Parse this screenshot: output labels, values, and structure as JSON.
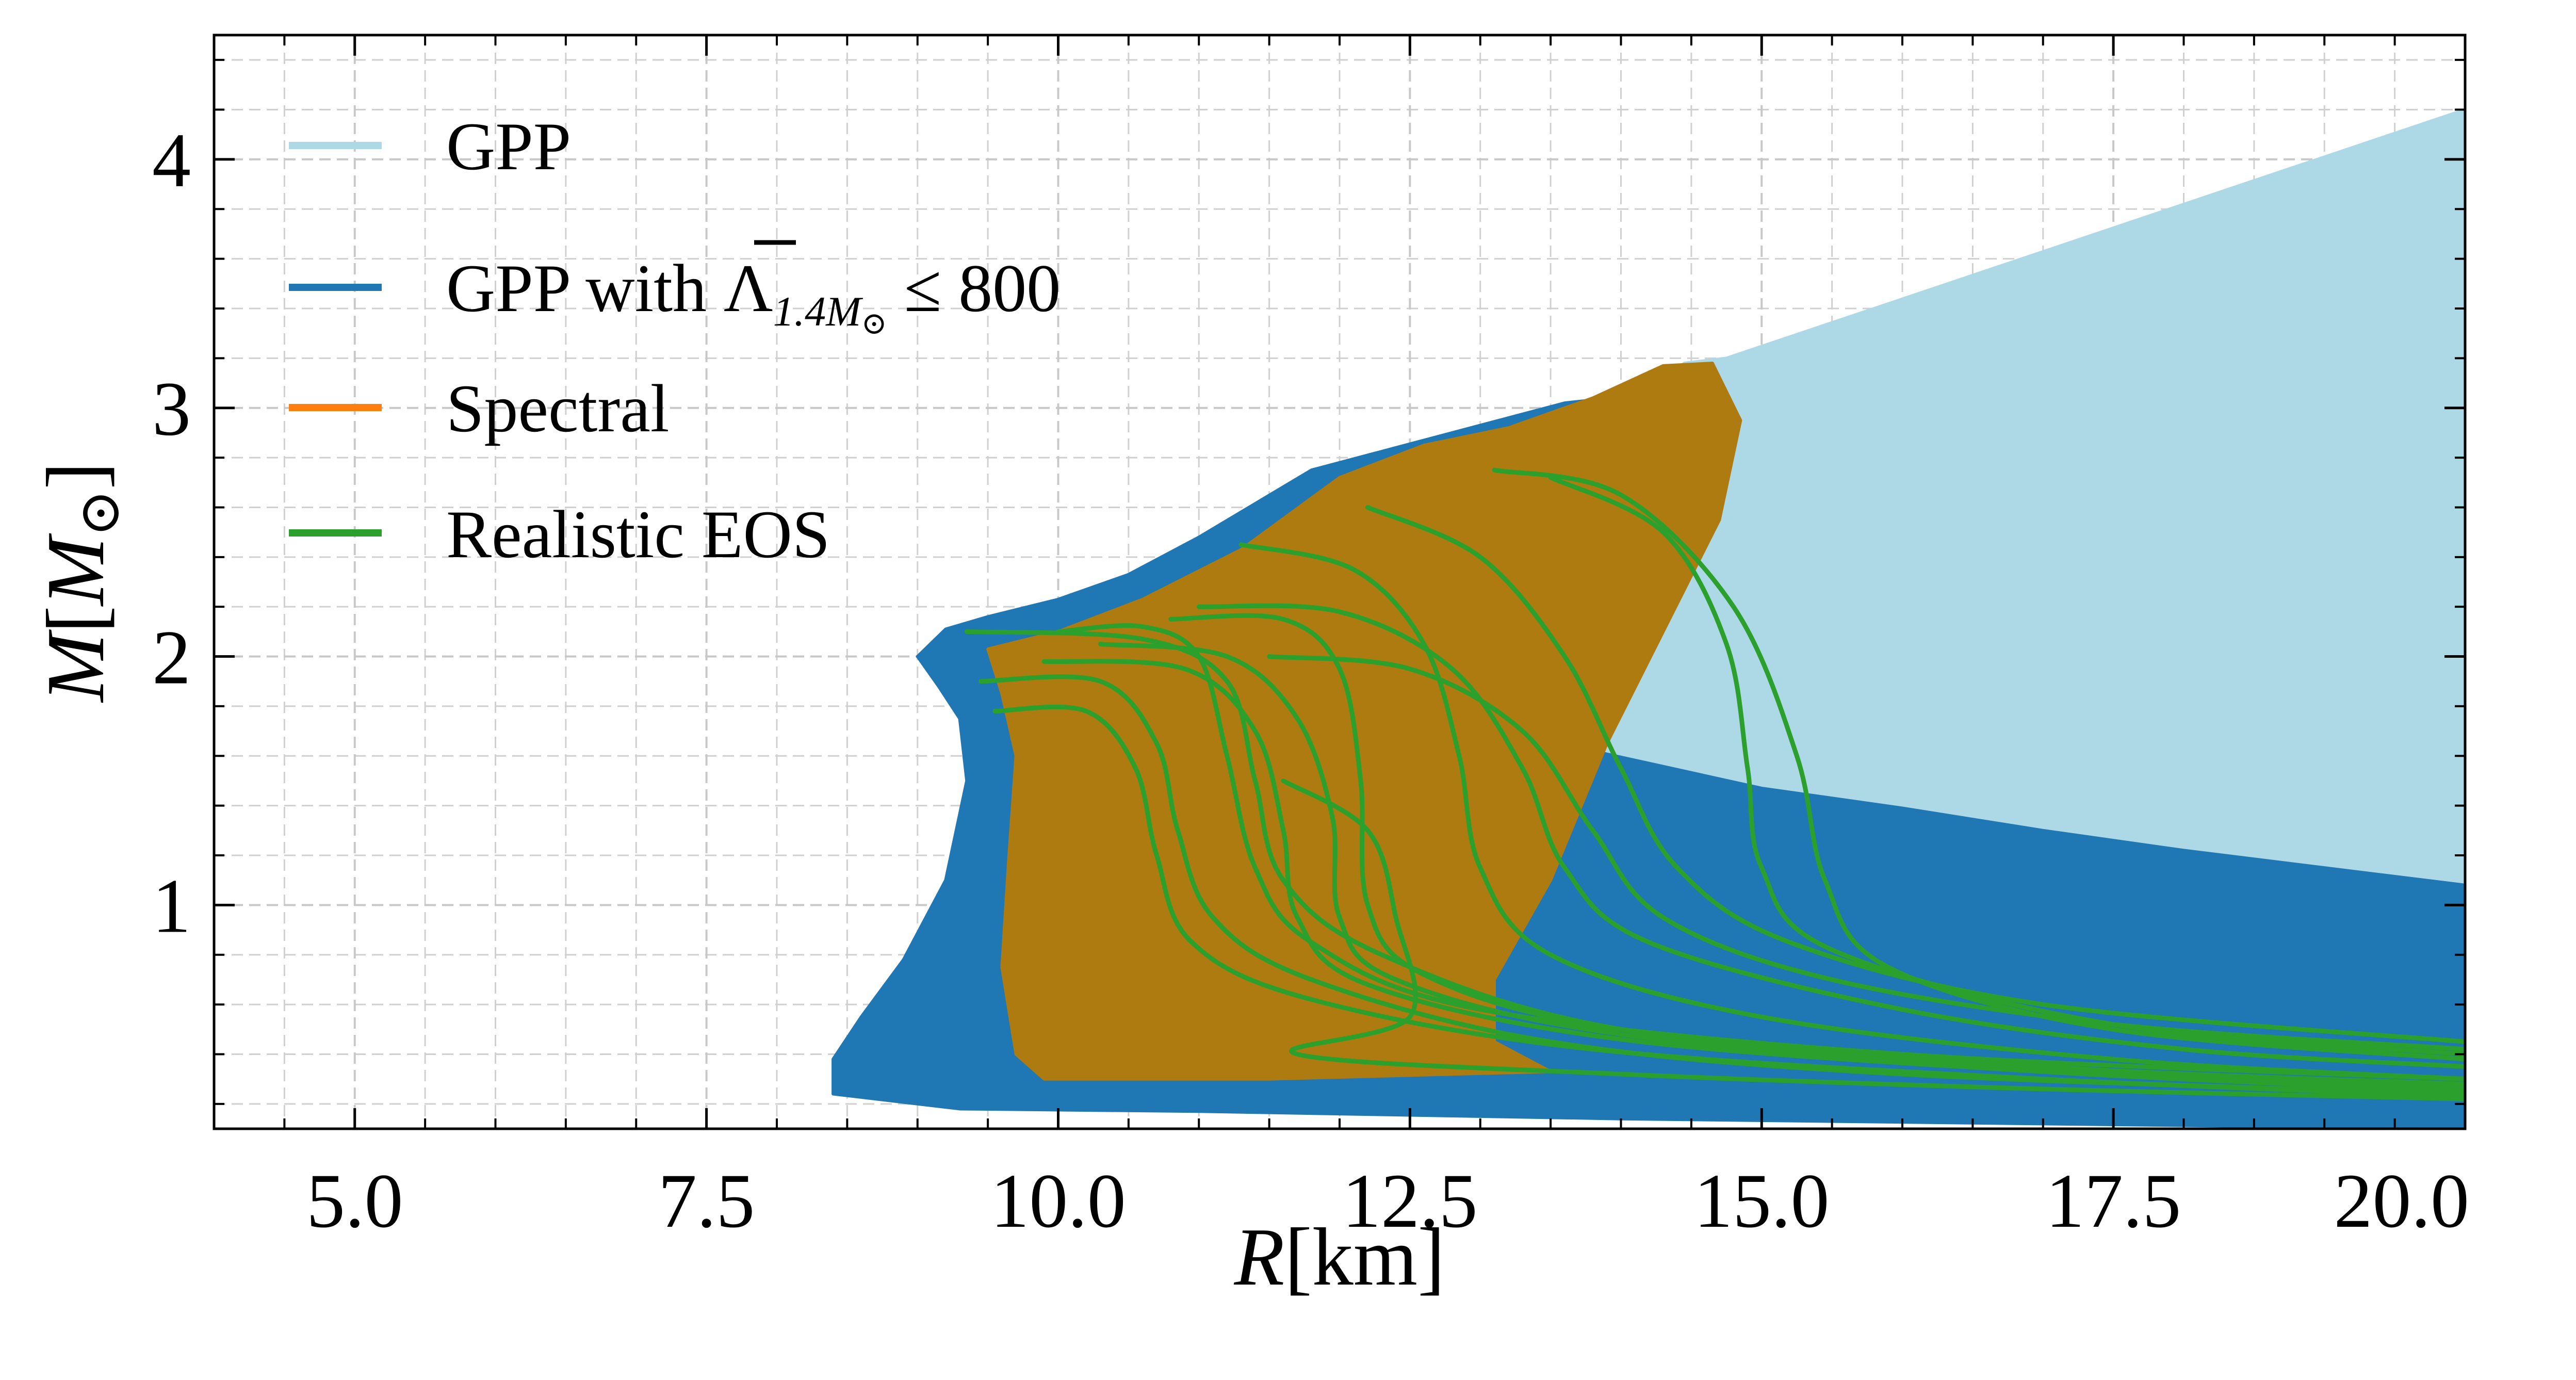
{
  "chart_data": {
    "type": "area",
    "title": "",
    "xlabel": {
      "var": "R",
      "unit": "[km]"
    },
    "ylabel": {
      "var": "M",
      "bracket_open": "[",
      "bracket_close": "]",
      "subscript": "M",
      "sun": "⊙"
    },
    "xlim": [
      4.0,
      20.0
    ],
    "ylim": [
      0.1,
      4.5
    ],
    "grid": true,
    "x_ticks": [
      {
        "value": 5.0,
        "label": "5.0"
      },
      {
        "value": 7.5,
        "label": "7.5"
      },
      {
        "value": 10.0,
        "label": "10.0"
      },
      {
        "value": 12.5,
        "label": "12.5"
      },
      {
        "value": 15.0,
        "label": "15.0"
      },
      {
        "value": 17.5,
        "label": "17.5"
      },
      {
        "value": 20.0,
        "label": "20.0"
      }
    ],
    "y_ticks": [
      {
        "value": 1,
        "label": "1"
      },
      {
        "value": 2,
        "label": "2"
      },
      {
        "value": 3,
        "label": "3"
      },
      {
        "value": 4,
        "label": "4"
      }
    ],
    "legend_position": "top-left",
    "legend": [
      {
        "label": "GPP",
        "color": "#add8e6"
      },
      {
        "label_prefix": "GPP with ",
        "label_symbol": "Λ",
        "label_sub": "1.4M",
        "label_sun": "⊙",
        "label_suffix": " ≤ 800",
        "color": "#1f77b4"
      },
      {
        "label": "Spectral",
        "color": "#ff7f0e"
      },
      {
        "label": "Realistic EOS",
        "color": "#2ca02c"
      }
    ],
    "series": [
      {
        "name": "GPP",
        "kind": "band",
        "color": "#add8e6",
        "polygon": [
          [
            13.5,
            1.62
          ],
          [
            14.1,
            3.0
          ],
          [
            14.45,
            3.18
          ],
          [
            14.75,
            3.2
          ],
          [
            20,
            4.2
          ],
          [
            20,
            1.08
          ],
          [
            19.0,
            1.16
          ],
          [
            17.0,
            1.29
          ],
          [
            16.0,
            1.37
          ],
          [
            15.0,
            1.45
          ],
          [
            14.0,
            1.57
          ]
        ]
      },
      {
        "name": "GPP with Λ1.4M⊙ ≤ 800",
        "kind": "band",
        "color": "#1f77b4",
        "polygon": [
          [
            9.0,
            2.0
          ],
          [
            9.2,
            2.11
          ],
          [
            9.5,
            2.16
          ],
          [
            10.0,
            2.23
          ],
          [
            10.5,
            2.33
          ],
          [
            11.0,
            2.48
          ],
          [
            11.8,
            2.75
          ],
          [
            12.4,
            2.84
          ],
          [
            13.0,
            2.93
          ],
          [
            13.6,
            3.02
          ],
          [
            14.1,
            3.05
          ],
          [
            14.5,
            3.14
          ],
          [
            14.8,
            2.9
          ],
          [
            14.3,
            2.3
          ],
          [
            13.9,
            1.8
          ],
          [
            13.8,
            1.62
          ],
          [
            15.0,
            1.47
          ],
          [
            16.0,
            1.39
          ],
          [
            17.0,
            1.3
          ],
          [
            18.0,
            1.22
          ],
          [
            19.0,
            1.15
          ],
          [
            20.0,
            1.08
          ],
          [
            20.0,
            0.1
          ],
          [
            17.0,
            0.12
          ],
          [
            14.0,
            0.14
          ],
          [
            11.0,
            0.17
          ],
          [
            9.3,
            0.18
          ],
          [
            8.4,
            0.24
          ],
          [
            8.4,
            0.38
          ],
          [
            8.6,
            0.55
          ],
          [
            8.9,
            0.78
          ],
          [
            9.2,
            1.1
          ],
          [
            9.35,
            1.5
          ],
          [
            9.3,
            1.75
          ],
          [
            9.15,
            1.88
          ]
        ]
      },
      {
        "name": "Spectral",
        "kind": "band",
        "color": "#ae7b10",
        "polygon": [
          [
            9.5,
            2.03
          ],
          [
            10.0,
            2.1
          ],
          [
            10.6,
            2.23
          ],
          [
            11.3,
            2.43
          ],
          [
            12.0,
            2.72
          ],
          [
            12.6,
            2.85
          ],
          [
            13.2,
            2.92
          ],
          [
            13.8,
            3.04
          ],
          [
            14.3,
            3.17
          ],
          [
            14.65,
            3.18
          ],
          [
            14.85,
            2.95
          ],
          [
            14.7,
            2.55
          ],
          [
            14.3,
            2.1
          ],
          [
            13.9,
            1.65
          ],
          [
            13.5,
            1.1
          ],
          [
            13.1,
            0.7
          ],
          [
            13.1,
            0.45
          ],
          [
            13.5,
            0.33
          ],
          [
            11.5,
            0.3
          ],
          [
            9.9,
            0.3
          ],
          [
            9.7,
            0.4
          ],
          [
            9.6,
            0.75
          ],
          [
            9.65,
            1.2
          ],
          [
            9.7,
            1.6
          ],
          [
            9.6,
            1.85
          ]
        ]
      },
      {
        "name": "Realistic EOS 1",
        "kind": "curve",
        "color": "#2ca02c",
        "points": [
          [
            9.35,
            2.1
          ],
          [
            10.6,
            2.07
          ],
          [
            11.2,
            1.9
          ],
          [
            11.4,
            1.5
          ],
          [
            11.6,
            1.1
          ],
          [
            12.3,
            0.8
          ],
          [
            14.0,
            0.5
          ],
          [
            17.0,
            0.35
          ],
          [
            20.0,
            0.28
          ]
        ]
      },
      {
        "name": "Realistic EOS 2",
        "kind": "curve",
        "color": "#2ca02c",
        "points": [
          [
            9.45,
            1.9
          ],
          [
            10.3,
            1.9
          ],
          [
            10.7,
            1.65
          ],
          [
            10.85,
            1.3
          ],
          [
            11.1,
            0.95
          ],
          [
            11.8,
            0.7
          ],
          [
            13.5,
            0.45
          ],
          [
            16.0,
            0.32
          ],
          [
            20.0,
            0.24
          ]
        ]
      },
      {
        "name": "Realistic EOS 3",
        "kind": "curve",
        "color": "#2ca02c",
        "points": [
          [
            9.55,
            1.78
          ],
          [
            10.2,
            1.78
          ],
          [
            10.55,
            1.55
          ],
          [
            10.7,
            1.2
          ],
          [
            10.95,
            0.85
          ],
          [
            11.8,
            0.62
          ],
          [
            13.8,
            0.42
          ],
          [
            17.0,
            0.3
          ],
          [
            20.0,
            0.23
          ]
        ]
      },
      {
        "name": "Realistic EOS 4",
        "kind": "curve",
        "color": "#2ca02c",
        "points": [
          [
            10.0,
            2.1
          ],
          [
            10.6,
            2.12
          ],
          [
            11.0,
            2.0
          ],
          [
            11.2,
            1.6
          ],
          [
            11.4,
            1.15
          ],
          [
            11.8,
            0.85
          ],
          [
            13.0,
            0.58
          ],
          [
            16.0,
            0.4
          ],
          [
            20.0,
            0.3
          ]
        ]
      },
      {
        "name": "Realistic EOS 5",
        "kind": "curve",
        "color": "#2ca02c",
        "points": [
          [
            10.8,
            2.15
          ],
          [
            11.6,
            2.15
          ],
          [
            12.0,
            1.95
          ],
          [
            12.15,
            1.5
          ],
          [
            12.2,
            1.0
          ],
          [
            12.6,
            0.72
          ],
          [
            14.0,
            0.5
          ],
          [
            17.0,
            0.35
          ],
          [
            20.0,
            0.27
          ]
        ]
      },
      {
        "name": "Realistic EOS 6",
        "kind": "curve",
        "color": "#2ca02c",
        "points": [
          [
            11.3,
            2.45
          ],
          [
            12.1,
            2.35
          ],
          [
            12.6,
            2.05
          ],
          [
            12.85,
            1.6
          ],
          [
            13.0,
            1.15
          ],
          [
            13.5,
            0.8
          ],
          [
            15.0,
            0.55
          ],
          [
            17.5,
            0.38
          ],
          [
            20.0,
            0.3
          ]
        ]
      },
      {
        "name": "Realistic EOS 7",
        "kind": "curve",
        "color": "#2ca02c",
        "points": [
          [
            11.0,
            2.2
          ],
          [
            12.0,
            2.18
          ],
          [
            12.8,
            1.95
          ],
          [
            13.3,
            1.55
          ],
          [
            13.6,
            1.15
          ],
          [
            14.2,
            0.85
          ],
          [
            16.0,
            0.58
          ],
          [
            18.0,
            0.42
          ],
          [
            20.0,
            0.35
          ]
        ]
      },
      {
        "name": "Realistic EOS 8",
        "kind": "curve",
        "color": "#2ca02c",
        "points": [
          [
            11.5,
            2.0
          ],
          [
            12.5,
            1.95
          ],
          [
            13.3,
            1.7
          ],
          [
            13.8,
            1.3
          ],
          [
            14.3,
            0.95
          ],
          [
            15.5,
            0.7
          ],
          [
            17.5,
            0.52
          ],
          [
            20.0,
            0.42
          ]
        ]
      },
      {
        "name": "Realistic EOS 9",
        "kind": "curve",
        "color": "#2ca02c",
        "points": [
          [
            12.2,
            2.6
          ],
          [
            13.0,
            2.4
          ],
          [
            13.6,
            2.0
          ],
          [
            14.0,
            1.55
          ],
          [
            14.4,
            1.15
          ],
          [
            15.2,
            0.85
          ],
          [
            17.0,
            0.6
          ],
          [
            20.0,
            0.45
          ]
        ]
      },
      {
        "name": "Realistic EOS 10",
        "kind": "curve",
        "color": "#2ca02c",
        "points": [
          [
            13.1,
            2.75
          ],
          [
            14.0,
            2.65
          ],
          [
            14.8,
            2.2
          ],
          [
            15.25,
            1.6
          ],
          [
            15.45,
            1.1
          ],
          [
            15.9,
            0.75
          ],
          [
            17.5,
            0.5
          ],
          [
            20.0,
            0.38
          ]
        ]
      },
      {
        "name": "Realistic EOS 11",
        "kind": "curve",
        "color": "#2ca02c",
        "points": [
          [
            13.5,
            2.72
          ],
          [
            14.3,
            2.5
          ],
          [
            14.75,
            2.05
          ],
          [
            14.9,
            1.55
          ],
          [
            15.0,
            1.15
          ],
          [
            15.5,
            0.82
          ],
          [
            17.5,
            0.52
          ],
          [
            20.0,
            0.4
          ]
        ]
      },
      {
        "name": "Realistic EOS 12",
        "kind": "curve",
        "color": "#2ca02c",
        "points": [
          [
            10.3,
            2.05
          ],
          [
            11.2,
            2.0
          ],
          [
            11.7,
            1.75
          ],
          [
            11.95,
            1.35
          ],
          [
            12.0,
            0.95
          ],
          [
            12.4,
            0.7
          ],
          [
            14.0,
            0.48
          ],
          [
            17.0,
            0.34
          ],
          [
            20.0,
            0.26
          ]
        ]
      },
      {
        "name": "Realistic EOS 13",
        "kind": "curve",
        "color": "#2ca02c",
        "points": [
          [
            9.9,
            1.98
          ],
          [
            10.9,
            1.95
          ],
          [
            11.4,
            1.7
          ],
          [
            11.6,
            1.3
          ],
          [
            11.7,
            0.95
          ],
          [
            12.2,
            0.68
          ],
          [
            14.0,
            0.46
          ],
          [
            17.0,
            0.33
          ],
          [
            20.0,
            0.25
          ]
        ]
      },
      {
        "name": "Realistic EOS 14",
        "kind": "curve",
        "color": "#2ca02c",
        "points": [
          [
            11.6,
            1.5
          ],
          [
            12.2,
            1.3
          ],
          [
            12.4,
            0.95
          ],
          [
            12.5,
            0.55
          ],
          [
            11.7,
            0.4
          ],
          [
            14.0,
            0.32
          ],
          [
            17.0,
            0.26
          ],
          [
            20.0,
            0.22
          ]
        ]
      }
    ]
  }
}
